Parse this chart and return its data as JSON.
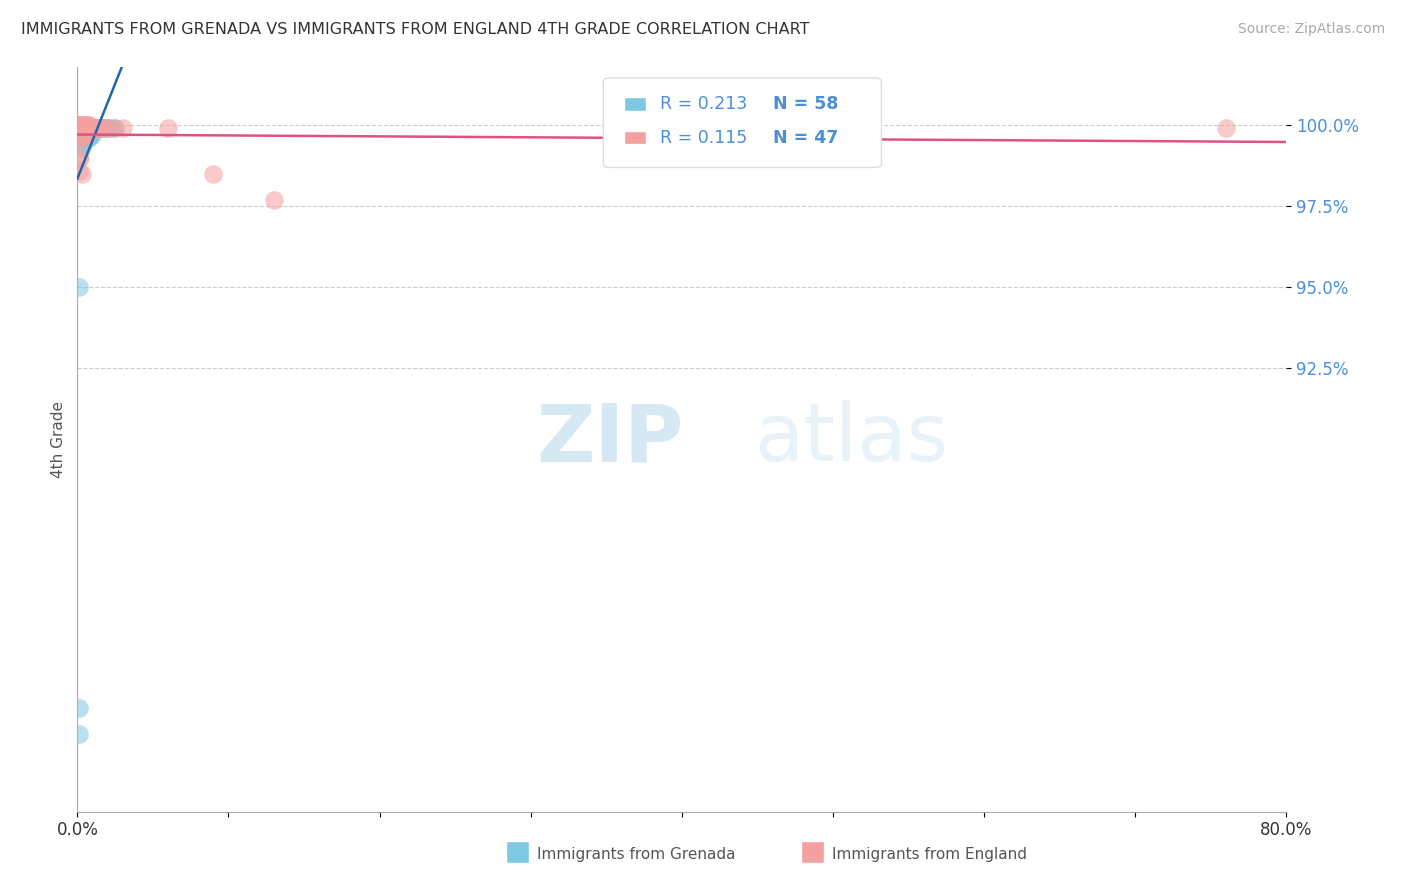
{
  "title": "IMMIGRANTS FROM GRENADA VS IMMIGRANTS FROM ENGLAND 4TH GRADE CORRELATION CHART",
  "source": "Source: ZipAtlas.com",
  "ylabel": "4th Grade",
  "ytick_labels": [
    "100.0%",
    "97.5%",
    "95.0%",
    "92.5%"
  ],
  "ytick_values": [
    1.0,
    0.975,
    0.95,
    0.925
  ],
  "xmin": 0.0,
  "xmax": 0.8,
  "ymin": 0.788,
  "ymax": 1.018,
  "legend_R1": "R = 0.213",
  "legend_N1": "N = 58",
  "legend_R2": "R = 0.115",
  "legend_N2": "N = 47",
  "color_grenada": "#7ec8e3",
  "color_england": "#f4a0a0",
  "trendline_grenada_color": "#2166ac",
  "trendline_england_color": "#e05080",
  "background_color": "#ffffff",
  "grenada_x": [
    0.0005,
    0.0005,
    0.0008,
    0.001,
    0.001,
    0.001,
    0.001,
    0.001,
    0.0015,
    0.0015,
    0.002,
    0.002,
    0.002,
    0.002,
    0.002,
    0.002,
    0.003,
    0.003,
    0.003,
    0.003,
    0.003,
    0.003,
    0.004,
    0.004,
    0.004,
    0.004,
    0.005,
    0.005,
    0.005,
    0.005,
    0.005,
    0.006,
    0.006,
    0.006,
    0.007,
    0.007,
    0.007,
    0.008,
    0.008,
    0.008,
    0.009,
    0.009,
    0.01,
    0.01,
    0.011,
    0.012,
    0.013,
    0.014,
    0.015,
    0.016,
    0.017,
    0.018,
    0.02,
    0.022,
    0.025,
    0.001,
    0.001,
    0.001
  ],
  "grenada_y": [
    0.999,
    0.998,
    0.999,
    1.0,
    0.999,
    0.998,
    0.997,
    0.996,
    0.999,
    0.998,
    0.999,
    0.999,
    0.998,
    0.997,
    0.9965,
    0.994,
    0.9995,
    0.999,
    0.998,
    0.997,
    0.996,
    0.993,
    0.9995,
    0.999,
    0.998,
    0.997,
    0.9995,
    0.999,
    0.998,
    0.997,
    0.995,
    0.999,
    0.998,
    0.997,
    0.999,
    0.998,
    0.996,
    0.999,
    0.998,
    0.996,
    0.999,
    0.997,
    0.999,
    0.997,
    0.999,
    0.999,
    0.999,
    0.999,
    0.999,
    0.999,
    0.999,
    0.999,
    0.999,
    0.999,
    0.999,
    0.95,
    0.82,
    0.812
  ],
  "england_x": [
    0.0005,
    0.0005,
    0.001,
    0.001,
    0.001,
    0.001,
    0.001,
    0.0015,
    0.002,
    0.002,
    0.002,
    0.002,
    0.003,
    0.003,
    0.003,
    0.003,
    0.004,
    0.004,
    0.004,
    0.005,
    0.005,
    0.005,
    0.006,
    0.006,
    0.007,
    0.007,
    0.007,
    0.008,
    0.008,
    0.009,
    0.01,
    0.011,
    0.012,
    0.013,
    0.015,
    0.017,
    0.02,
    0.025,
    0.03,
    0.06,
    0.09,
    0.13,
    0.001,
    0.001,
    0.002,
    0.003,
    0.76
  ],
  "england_y": [
    1.0,
    0.999,
    1.0,
    0.999,
    0.998,
    0.997,
    0.996,
    0.999,
    1.0,
    0.999,
    0.998,
    0.996,
    1.0,
    0.999,
    0.998,
    0.996,
    1.0,
    0.999,
    0.997,
    1.0,
    0.999,
    0.997,
    1.0,
    0.999,
    1.0,
    0.999,
    0.997,
    1.0,
    0.999,
    0.999,
    0.999,
    0.999,
    0.999,
    0.999,
    0.999,
    0.999,
    0.999,
    0.999,
    0.999,
    0.999,
    0.985,
    0.977,
    0.99,
    0.986,
    0.99,
    0.985,
    0.999
  ]
}
